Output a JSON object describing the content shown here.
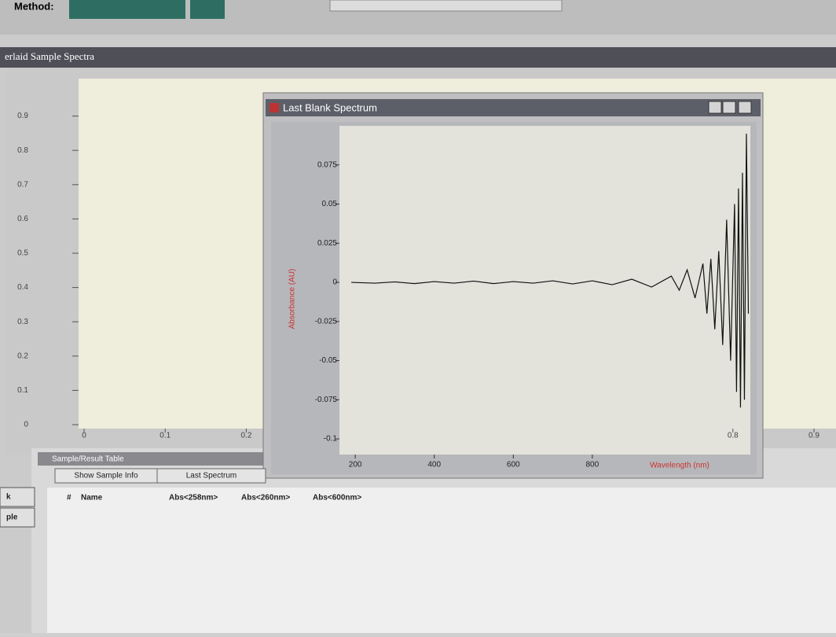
{
  "top_bar": {
    "method_label": "Method:"
  },
  "overlaid_window": {
    "title": "erlaid Sample Spectra",
    "chart": {
      "xlim": [
        0,
        0.9
      ],
      "xticks": [
        0,
        0.1,
        0.2,
        0.8,
        0.9
      ],
      "ylim": [
        0,
        1.0
      ],
      "yticks": [
        0,
        0.1,
        0.2,
        0.3,
        0.4,
        0.5,
        0.6,
        0.7,
        0.8,
        0.9
      ]
    }
  },
  "blank_window": {
    "title": "Last Blank Spectrum",
    "chart": {
      "type": "line",
      "x_label": "Wavelength (nm)",
      "y_label": "Absorbance (AU)",
      "xlim": [
        160,
        1200
      ],
      "xticks": [
        200,
        400,
        600,
        800
      ],
      "ylim": [
        -0.11,
        0.1
      ],
      "yticks": [
        0.075,
        0.05,
        0.025,
        0,
        -0.025,
        -0.05,
        -0.075,
        -0.1
      ],
      "x": [
        190,
        250,
        300,
        350,
        400,
        450,
        500,
        550,
        600,
        650,
        700,
        750,
        800,
        850,
        900,
        950,
        1000,
        1020,
        1040,
        1060,
        1080,
        1090,
        1100,
        1110,
        1120,
        1130,
        1140,
        1150,
        1160,
        1165,
        1170,
        1175,
        1180,
        1185,
        1190,
        1195
      ],
      "series": [
        {
          "color": "#111111",
          "values": [
            0,
            -0.0005,
            0.0003,
            -0.0008,
            0.0005,
            -0.0005,
            0.0008,
            -0.0008,
            0.0005,
            -0.0005,
            0.001,
            -0.001,
            0.001,
            -0.0015,
            0.002,
            -0.003,
            0.004,
            -0.005,
            0.008,
            -0.01,
            0.012,
            -0.02,
            0.015,
            -0.03,
            0.02,
            -0.04,
            0.04,
            -0.05,
            0.05,
            -0.07,
            0.06,
            -0.08,
            0.07,
            -0.075,
            0.095,
            -0.02
          ]
        }
      ]
    }
  },
  "table": {
    "title": "Sample/Result Table",
    "buttons": [
      "Show Sample Info",
      "Last Spectrum"
    ],
    "columns": [
      "#",
      "Name",
      "Abs<258nm>",
      "Abs<260nm>",
      "Abs<600nm>"
    ]
  },
  "left_buttons": [
    "k",
    "ple"
  ]
}
